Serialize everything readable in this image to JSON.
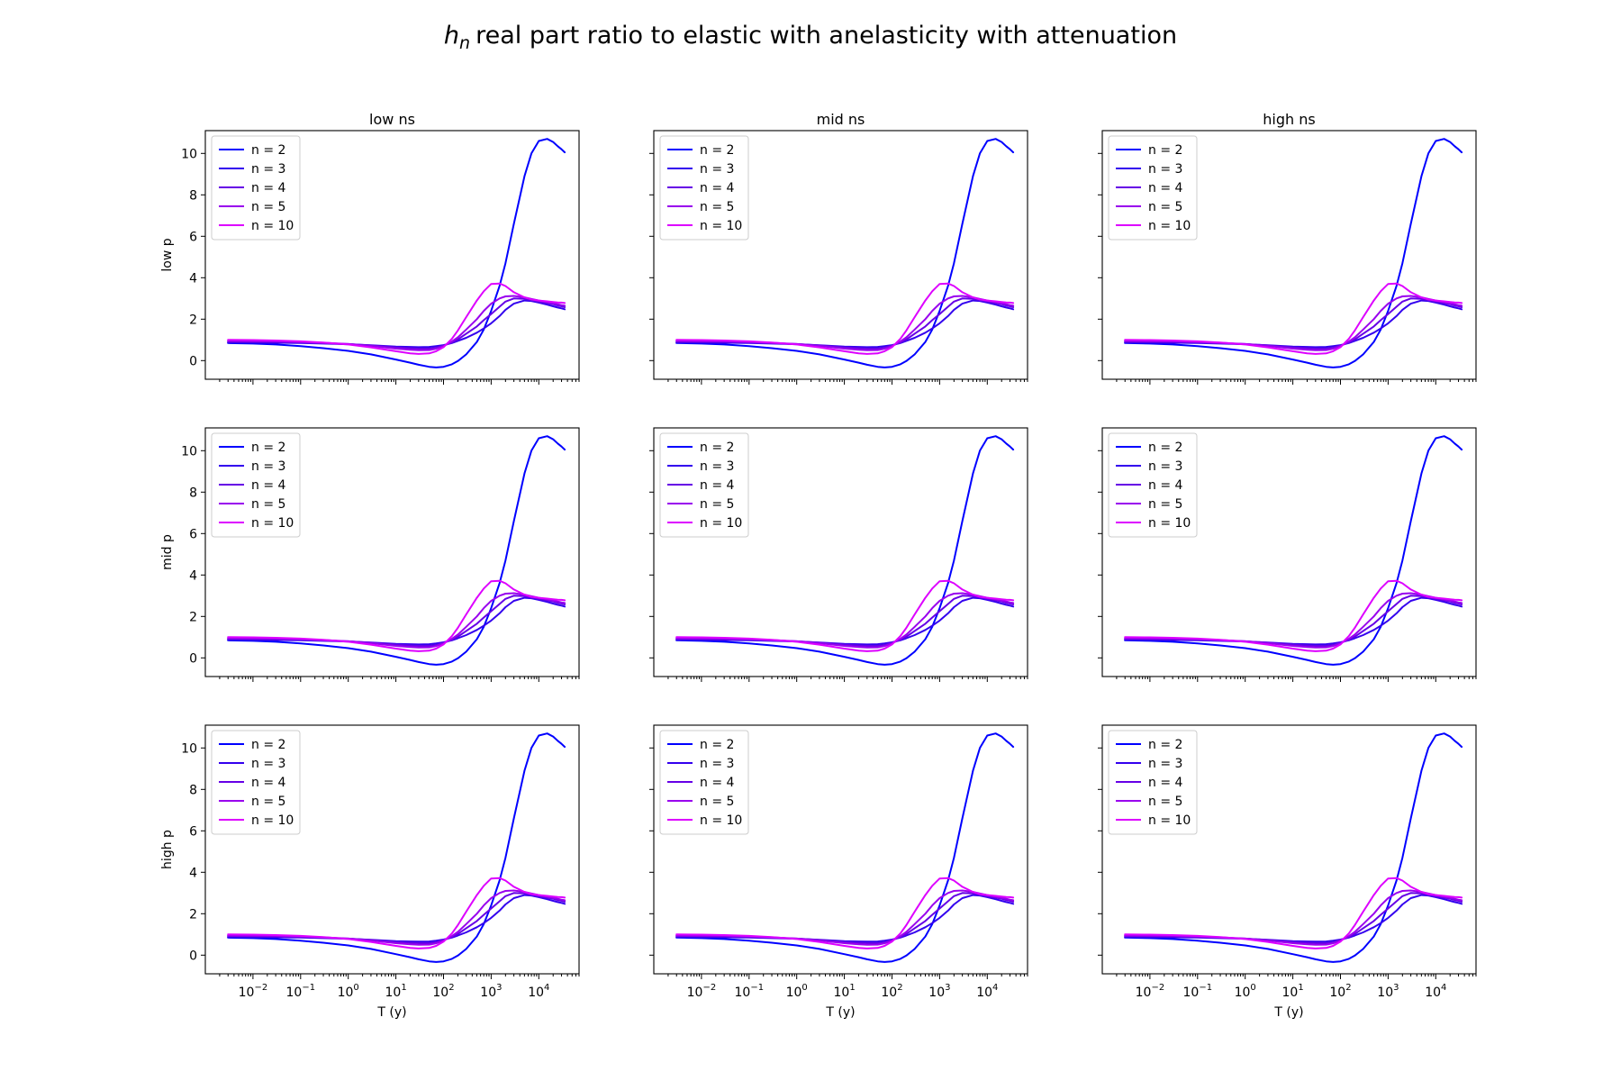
{
  "figure": {
    "title_symbol": "h",
    "title_subscript": "n",
    "title_rest": "real part ratio to elastic with anelasticity with attenuation"
  },
  "chart_data": {
    "type": "line",
    "x_scale": "log",
    "xlabel": "T (y)",
    "xlim": [
      0.001,
      70000
    ],
    "ylim": [
      -0.9,
      11.1
    ],
    "y_ticks": [
      0,
      2,
      4,
      6,
      8,
      10
    ],
    "x_tick_exponents": [
      -2,
      -1,
      0,
      1,
      2,
      3,
      4
    ],
    "grid": false,
    "legend_position": "upper-left",
    "column_titles": [
      "low ns",
      "mid ns",
      "high ns"
    ],
    "row_labels": [
      "low p",
      "mid p",
      "high p"
    ],
    "x": [
      0.003,
      0.01,
      0.03,
      0.1,
      0.3,
      1,
      3,
      10,
      20,
      30,
      50,
      70,
      100,
      150,
      200,
      300,
      500,
      700,
      1000,
      1500,
      2000,
      3000,
      5000,
      7000,
      10000,
      15000,
      20000,
      25000,
      30000,
      35000
    ],
    "series": [
      {
        "name": "n = 2",
        "color": "#0000ff",
        "values": [
          0.85,
          0.82,
          0.78,
          0.7,
          0.6,
          0.47,
          0.3,
          0.05,
          -0.1,
          -0.2,
          -0.3,
          -0.33,
          -0.3,
          -0.18,
          -0.02,
          0.3,
          0.9,
          1.5,
          2.4,
          3.6,
          4.7,
          6.6,
          8.9,
          10.0,
          10.6,
          10.7,
          10.55,
          10.35,
          10.2,
          10.05
        ]
      },
      {
        "name": "n = 3",
        "color": "#3300ee",
        "values": [
          0.88,
          0.87,
          0.86,
          0.85,
          0.82,
          0.79,
          0.74,
          0.68,
          0.66,
          0.65,
          0.66,
          0.7,
          0.75,
          0.85,
          0.95,
          1.1,
          1.35,
          1.55,
          1.8,
          2.15,
          2.45,
          2.75,
          2.9,
          2.88,
          2.8,
          2.7,
          2.62,
          2.56,
          2.52,
          2.48
        ]
      },
      {
        "name": "n = 4",
        "color": "#6600e6",
        "values": [
          0.92,
          0.91,
          0.9,
          0.88,
          0.84,
          0.8,
          0.73,
          0.64,
          0.6,
          0.58,
          0.58,
          0.62,
          0.72,
          0.88,
          1.02,
          1.3,
          1.65,
          1.95,
          2.25,
          2.6,
          2.85,
          3.0,
          2.98,
          2.92,
          2.85,
          2.78,
          2.72,
          2.66,
          2.62,
          2.58
        ]
      },
      {
        "name": "n = 5",
        "color": "#9900ee",
        "values": [
          0.95,
          0.94,
          0.93,
          0.9,
          0.86,
          0.8,
          0.71,
          0.58,
          0.52,
          0.5,
          0.51,
          0.57,
          0.7,
          0.92,
          1.12,
          1.5,
          2.0,
          2.4,
          2.75,
          3.0,
          3.1,
          3.12,
          3.05,
          2.98,
          2.9,
          2.82,
          2.76,
          2.72,
          2.68,
          2.65
        ]
      },
      {
        "name": "n = 10",
        "color": "#dd00ff",
        "values": [
          1.0,
          0.99,
          0.97,
          0.93,
          0.87,
          0.78,
          0.64,
          0.45,
          0.35,
          0.32,
          0.35,
          0.45,
          0.65,
          1.05,
          1.45,
          2.1,
          2.9,
          3.35,
          3.7,
          3.72,
          3.6,
          3.3,
          3.05,
          2.95,
          2.9,
          2.86,
          2.83,
          2.81,
          2.8,
          2.78
        ]
      }
    ]
  }
}
